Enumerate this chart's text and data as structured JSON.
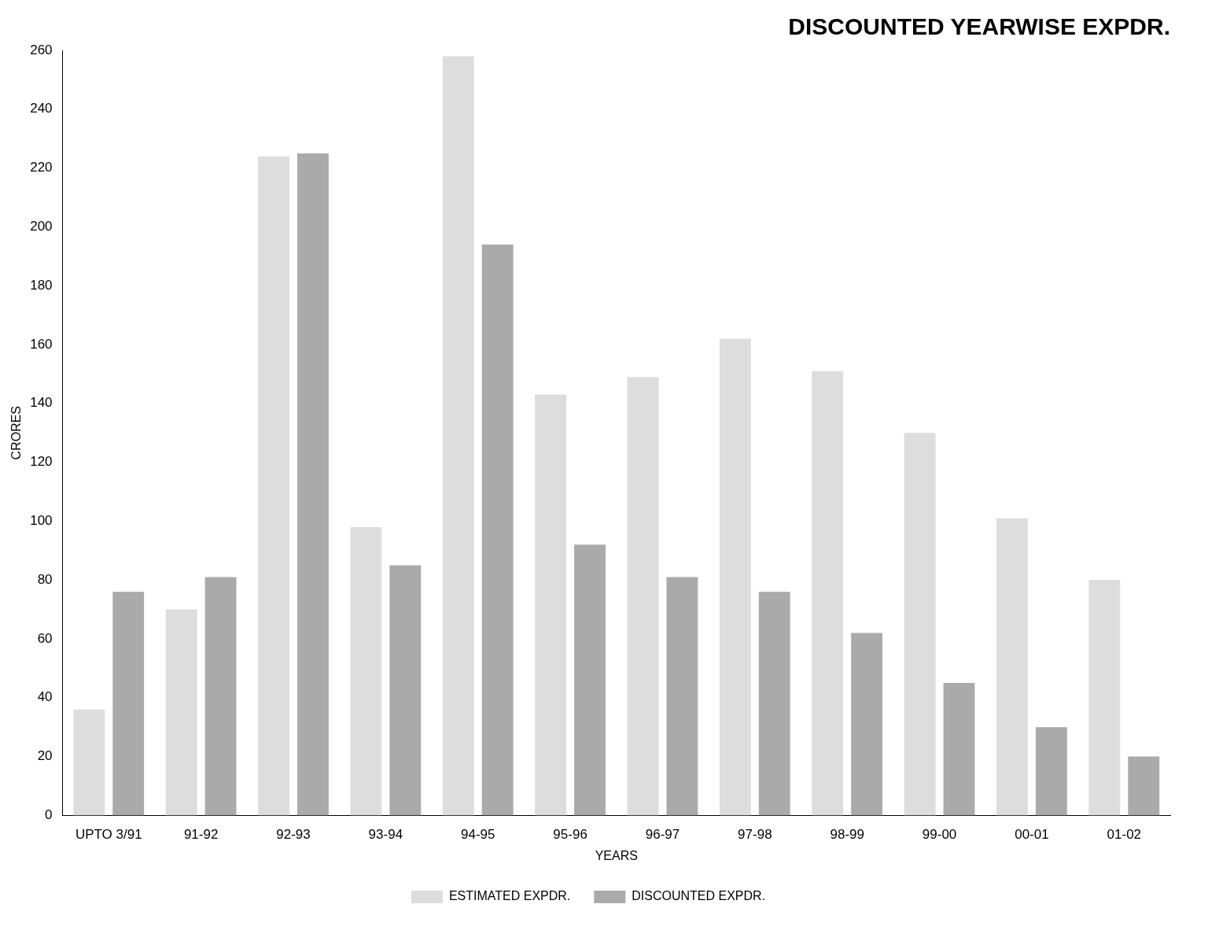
{
  "chart_data": {
    "type": "bar",
    "title": "DISCOUNTED YEARWISE EXPDR.",
    "xlabel": "YEARS",
    "ylabel": "CRORES",
    "categories": [
      "UPTO 3/91",
      "91-92",
      "92-93",
      "93-94",
      "94-95",
      "95-96",
      "96-97",
      "97-98",
      "98-99",
      "99-00",
      "00-01",
      "01-02"
    ],
    "series": [
      {
        "name": "ESTIMATED EXPDR.",
        "color": "#dddddd",
        "values": [
          36,
          70,
          224,
          98,
          258,
          143,
          149,
          162,
          151,
          130,
          101,
          80
        ]
      },
      {
        "name": "DISCOUNTED EXPDR.",
        "color": "#aaaaaa",
        "values": [
          76,
          81,
          225,
          85,
          194,
          92,
          81,
          76,
          62,
          45,
          30,
          20
        ]
      }
    ],
    "ylim": [
      0,
      260
    ],
    "yticks": [
      0,
      20,
      40,
      60,
      80,
      100,
      120,
      140,
      160,
      180,
      200,
      220,
      240,
      260
    ],
    "grid": false,
    "legend": "bottom"
  }
}
